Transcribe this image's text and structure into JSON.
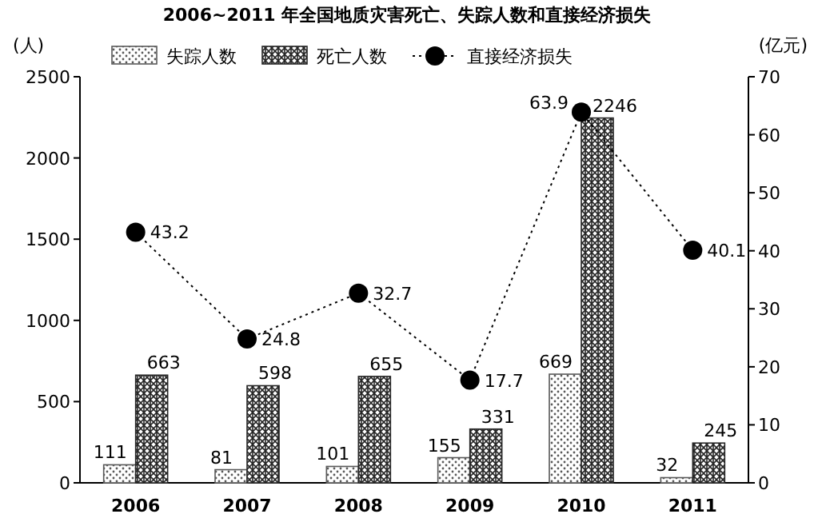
{
  "chart_data": {
    "type": "bar",
    "title": "2006~2011 年全国地质灾害死亡、失踪人数和直接经济损失",
    "ylabel": "(人)",
    "y2label": "(亿元)",
    "categories": [
      "2006",
      "2007",
      "2008",
      "2009",
      "2010",
      "2011"
    ],
    "series": [
      {
        "name": "失踪人数",
        "color": "#595959",
        "values": [
          111,
          81,
          101,
          155,
          669,
          32
        ]
      },
      {
        "name": "死亡人数",
        "color": "#262626",
        "values": [
          663,
          598,
          655,
          331,
          2246,
          245
        ]
      },
      {
        "name": "直接经济损失",
        "type": "line",
        "axis": "y2",
        "color": "#000000",
        "marker": "circle",
        "line_style": "dotted",
        "values": [
          43.2,
          24.8,
          32.7,
          17.7,
          63.9,
          40.1
        ]
      }
    ],
    "ylim": [
      0,
      2500
    ],
    "yticks": [
      0,
      500,
      1000,
      1500,
      2000,
      2500
    ],
    "y2lim": [
      0,
      70
    ],
    "y2ticks": [
      0,
      10,
      20,
      30,
      40,
      50,
      60,
      70
    ],
    "data_labels": true,
    "legend": "top",
    "grid": false
  }
}
